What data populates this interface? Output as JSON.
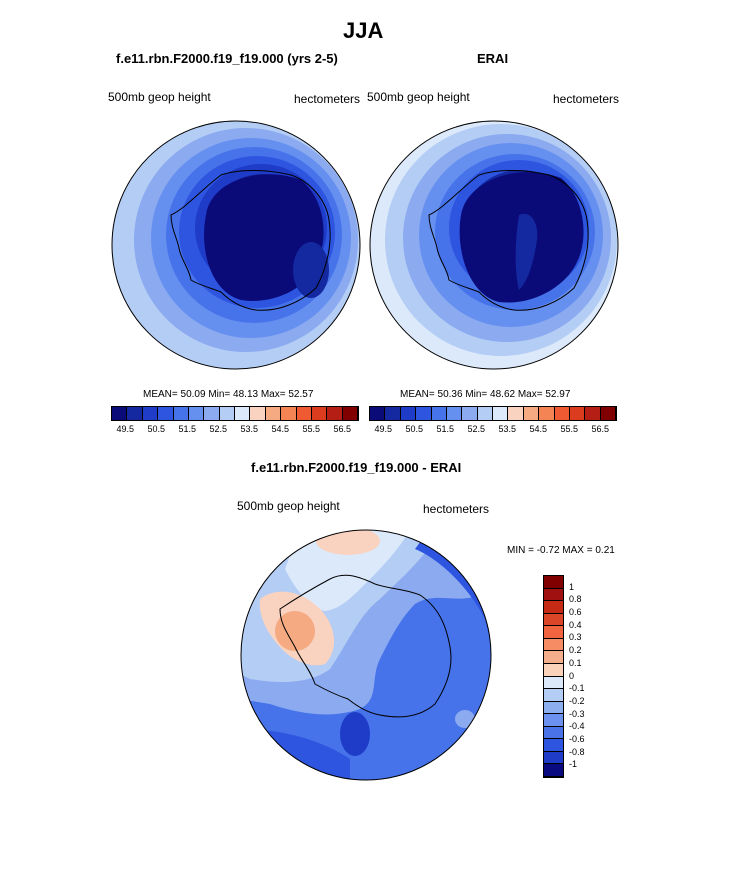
{
  "page_title": "JJA",
  "panels": [
    {
      "title": "f.e11.rbn.F2000.f19_f19.000 (yrs 2-5)",
      "left_label": "500mb geop height",
      "right_label": "hectometers",
      "mean_text": "MEAN=  50.09  Min=  48.13  Max=  52.57"
    },
    {
      "title": "ERAI",
      "left_label": "500mb geop height",
      "right_label": "hectometers",
      "mean_text": "MEAN=  50.36  Min=  48.62  Max=  52.97"
    }
  ],
  "diff_panel": {
    "title": "f.e11.rbn.F2000.f19_f19.000 - ERAI",
    "left_label": "500mb geop height",
    "right_label": "hectometers",
    "minmax_text": "MIN =  -0.72 MAX =   0.21"
  },
  "horizontal_colorbar": {
    "colors": [
      "#0a0a78",
      "#1428a0",
      "#1e3cc8",
      "#2d55e0",
      "#4673ea",
      "#6690f0",
      "#8caaf0",
      "#b4cdf5",
      "#dce9fa",
      "#fad2c0",
      "#f5aa82",
      "#f58455",
      "#f05a32",
      "#dc3c1e",
      "#b41e14",
      "#800000"
    ],
    "tick_labels": [
      "49.5",
      "50.5",
      "51.5",
      "52.5",
      "53.5",
      "54.5",
      "55.5",
      "56.5"
    ]
  },
  "vertical_colorbar": {
    "colors": [
      "#800000",
      "#a01010",
      "#c42a14",
      "#dc4628",
      "#f06440",
      "#f58c64",
      "#f5ae8c",
      "#fad2b9",
      "#dce9fa",
      "#b4cdf5",
      "#8cafef",
      "#6b92ee",
      "#4a73e8",
      "#2d55e0",
      "#1e3cc8",
      "#0a0a80"
    ],
    "tick_labels": [
      "1",
      "0.8",
      "0.6",
      "0.4",
      "0.3",
      "0.2",
      "0.1",
      "0",
      "-0.1",
      "-0.2",
      "-0.3",
      "-0.4",
      "-0.6",
      "-0.8",
      "-1"
    ]
  },
  "chart_data": [
    {
      "type": "heatmap",
      "title": "f.e11.rbn.F2000.f19_f19.000 (yrs 2-5)",
      "variable": "500mb geop height",
      "units": "hectometers",
      "season": "JJA",
      "stats": {
        "mean": 50.09,
        "min": 48.13,
        "max": 52.57
      },
      "colorbar_ticks": [
        49.5,
        50.5,
        51.5,
        52.5,
        53.5,
        54.5,
        55.5,
        56.5
      ]
    },
    {
      "type": "heatmap",
      "title": "ERAI",
      "variable": "500mb geop height",
      "units": "hectometers",
      "season": "JJA",
      "stats": {
        "mean": 50.36,
        "min": 48.62,
        "max": 52.97
      },
      "colorbar_ticks": [
        49.5,
        50.5,
        51.5,
        52.5,
        53.5,
        54.5,
        55.5,
        56.5
      ]
    },
    {
      "type": "heatmap",
      "title": "f.e11.rbn.F2000.f19_f19.000 - ERAI",
      "variable": "500mb geop height",
      "units": "hectometers",
      "season": "JJA",
      "stats": {
        "min": -0.72,
        "max": 0.21
      },
      "colorbar_ticks": [
        1,
        0.8,
        0.6,
        0.4,
        0.3,
        0.2,
        0.1,
        0,
        -0.1,
        -0.2,
        -0.3,
        -0.4,
        -0.6,
        -0.8,
        -1
      ]
    }
  ]
}
